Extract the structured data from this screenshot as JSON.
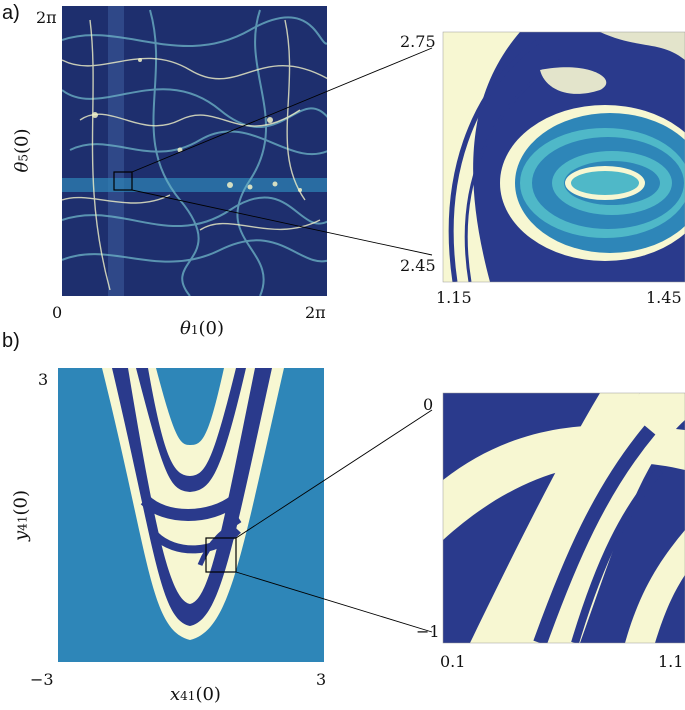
{
  "figure": {
    "panel_a": {
      "label": "a)",
      "main": {
        "x_axis": {
          "var": "θ",
          "sub": "1",
          "arg": "(0)",
          "min": "0",
          "max": "2π"
        },
        "y_axis": {
          "var": "θ",
          "sub": "5",
          "arg": "(0)",
          "max": "2π"
        }
      },
      "zoom": {
        "x_min": "1.15",
        "x_max": "1.45",
        "y_min": "2.45",
        "y_max": "2.75"
      }
    },
    "panel_b": {
      "label": "b)",
      "main": {
        "x_axis": {
          "var": "x",
          "sub": "41",
          "arg": "(0)",
          "min": "−3",
          "max": "3"
        },
        "y_axis": {
          "var": "y",
          "sub": "41",
          "arg": "(0)",
          "max": "3"
        }
      },
      "zoom": {
        "x_min": "0.1",
        "x_max": "1.1",
        "y_min": "−1",
        "y_max": "0"
      }
    },
    "colors": {
      "dark_blue": "#2a3a8c",
      "navy": "#1e2f6e",
      "teal": "#2e86b8",
      "cyan": "#4fb8c8",
      "cream": "#f7f7d2"
    }
  }
}
